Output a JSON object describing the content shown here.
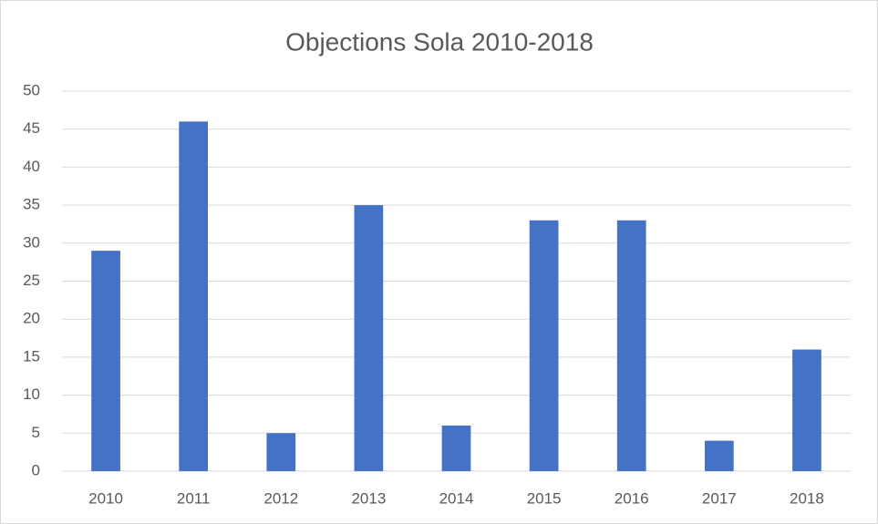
{
  "chart_data": {
    "type": "bar",
    "title": "Objections Sola 2010-2018",
    "categories": [
      "2010",
      "2011",
      "2012",
      "2013",
      "2014",
      "2015",
      "2016",
      "2017",
      "2018"
    ],
    "values": [
      29,
      46,
      5,
      35,
      6,
      33,
      33,
      4,
      16
    ],
    "color": "#4472c4",
    "ylim": [
      0,
      50
    ],
    "yticks": [
      0,
      5,
      10,
      15,
      20,
      25,
      30,
      35,
      40,
      45,
      50
    ],
    "grid": true
  }
}
